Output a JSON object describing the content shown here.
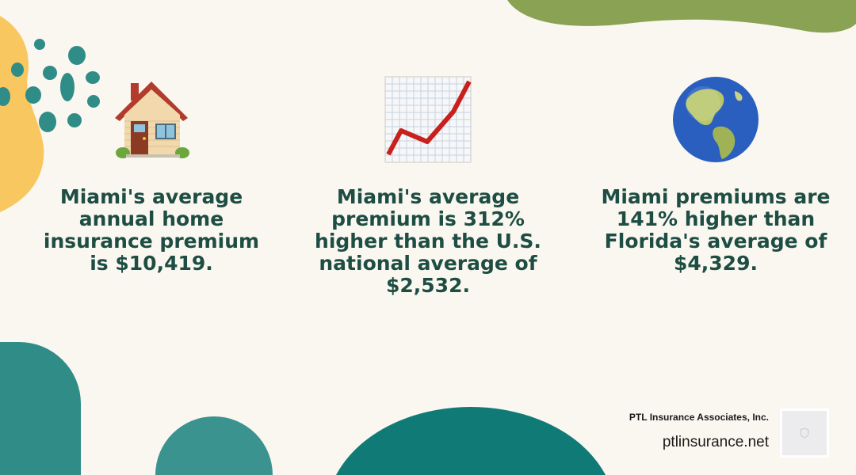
{
  "colors": {
    "background": "#faf7f0",
    "heading_text": "#1d4d43",
    "olive": "#8aa253",
    "yellow": "#f9c75f",
    "teal": "#2f8c87",
    "dark_teal": "#107b76",
    "dot_teal": "#2f8c87"
  },
  "stats": [
    {
      "icon": "house-icon",
      "text": "Miami's average annual home insurance premium is $10,419."
    },
    {
      "icon": "chart-increasing-icon",
      "text": "Miami's average premium is 312% higher than the U.S. national average of $2,532."
    },
    {
      "icon": "globe-americas-icon",
      "text": "Miami premiums are 141% higher than Florida's average of $4,329."
    }
  ],
  "footer": {
    "company": "PTL Insurance Associates, Inc.",
    "website": "ptlinsurance.net",
    "logo_icon": "shield-logo-icon"
  }
}
